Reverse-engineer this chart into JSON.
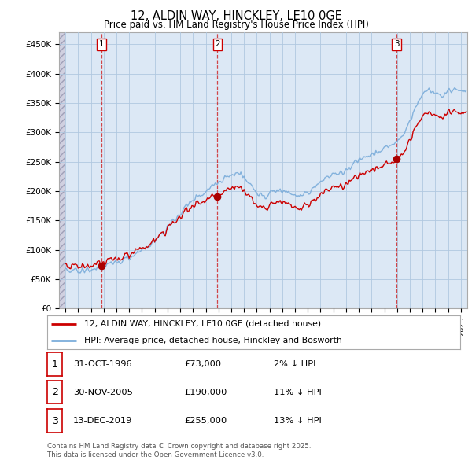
{
  "title": "12, ALDIN WAY, HINCKLEY, LE10 0GE",
  "subtitle": "Price paid vs. HM Land Registry's House Price Index (HPI)",
  "legend_line1": "12, ALDIN WAY, HINCKLEY, LE10 0GE (detached house)",
  "legend_line2": "HPI: Average price, detached house, Hinckley and Bosworth",
  "footer1": "Contains HM Land Registry data © Crown copyright and database right 2025.",
  "footer2": "This data is licensed under the Open Government Licence v3.0.",
  "table": [
    {
      "num": "1",
      "date": "31-OCT-1996",
      "price": "£73,000",
      "hpi": "2% ↓ HPI"
    },
    {
      "num": "2",
      "date": "30-NOV-2005",
      "price": "£190,000",
      "hpi": "11% ↓ HPI"
    },
    {
      "num": "3",
      "date": "13-DEC-2019",
      "price": "£255,000",
      "hpi": "13% ↓ HPI"
    }
  ],
  "sale_years": [
    1996.83,
    2005.92,
    2019.96
  ],
  "sale_prices": [
    73000,
    190000,
    255000
  ],
  "ylim": [
    0,
    470000
  ],
  "yticks": [
    0,
    50000,
    100000,
    150000,
    200000,
    250000,
    300000,
    350000,
    400000,
    450000
  ],
  "ytick_labels": [
    "£0",
    "£50K",
    "£100K",
    "£150K",
    "£200K",
    "£250K",
    "£300K",
    "£350K",
    "£400K",
    "£450K"
  ],
  "xlim_start": 1993.5,
  "xlim_end": 2025.5,
  "red_color": "#cc0000",
  "blue_color": "#7aacda",
  "dot_color": "#aa0000",
  "bg_plot_color": "#dce8f5",
  "bg_color": "#ffffff",
  "grid_color": "#b0c8e0",
  "hatch_color": "#c8c8d8"
}
